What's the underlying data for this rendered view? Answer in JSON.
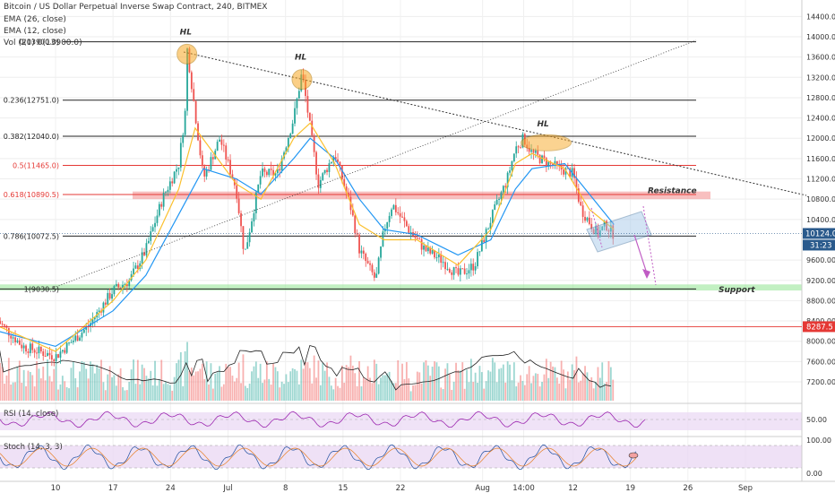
{
  "header": {
    "title": "Bitcoin / US Dollar Perpetual Inverse Swap Contract, 240, BITMEX",
    "ema26": "EMA (26, close)",
    "ema12": "EMA (12, close)",
    "vol": "Vol (20) 0(13900.0)"
  },
  "indicators": {
    "rsi_label": "RSI (14, close)",
    "stoch_label": "Stoch (14, 3, 3)"
  },
  "colors": {
    "up": "#26a69a",
    "down": "#ef5350",
    "ema26": "#2196f3",
    "ema12": "#fbc02d",
    "fib": "#222222",
    "fib_red": "#e53935",
    "resistance_zone": "#f28b8b",
    "support_zone": "#8fe38f",
    "price_tag": "#2a5a8c",
    "red_tag": "#e53935",
    "pane_fill": "#e9d7f3",
    "rsi_line": "#9c27b0"
  },
  "chart_data": {
    "type": "candlestick",
    "title": "Bitcoin / US Dollar Perpetual Inverse Swap Contract, 240, BITMEX",
    "price_axis": {
      "ticks": [
        14400,
        14000,
        13600,
        13200,
        12800,
        12400,
        12000,
        11600,
        11200,
        10800,
        10400,
        9600,
        9200,
        8800,
        8400,
        8000,
        7600,
        7200
      ],
      "last_price_tag": "10124.0",
      "countdown_tag": "31:23",
      "level_tag": "8287.5"
    },
    "x_axis": {
      "ticks": [
        "10",
        "17",
        "24",
        "Jul",
        "8",
        "15",
        "22",
        "Aug",
        "14:00",
        "12",
        "19",
        "26",
        "Sep"
      ]
    },
    "price_path": [
      {
        "t": "Jun 3",
        "p": 8400
      },
      {
        "t": "Jun 6",
        "p": 7900
      },
      {
        "t": "Jun 10",
        "p": 7700
      },
      {
        "t": "Jun 14",
        "p": 8300
      },
      {
        "t": "Jun 17",
        "p": 9000
      },
      {
        "t": "Jun 19",
        "p": 9200
      },
      {
        "t": "Jun 21",
        "p": 9800
      },
      {
        "t": "Jun 23",
        "p": 10800
      },
      {
        "t": "Jun 25",
        "p": 11500
      },
      {
        "t": "Jun 26",
        "p": 12800
      },
      {
        "t": "Jun 26",
        "p": 13800
      },
      {
        "t": "Jun 27",
        "p": 12500
      },
      {
        "t": "Jun 28",
        "p": 11200
      },
      {
        "t": "Jun 30",
        "p": 12000
      },
      {
        "t": "Jul 2",
        "p": 11000
      },
      {
        "t": "Jul 3",
        "p": 9700
      },
      {
        "t": "Jul 5",
        "p": 11300
      },
      {
        "t": "Jul 7",
        "p": 11300
      },
      {
        "t": "Jul 9",
        "p": 12400
      },
      {
        "t": "Jul 10",
        "p": 13300
      },
      {
        "t": "Jul 11",
        "p": 12200
      },
      {
        "t": "Jul 12",
        "p": 11100
      },
      {
        "t": "Jul 14",
        "p": 11700
      },
      {
        "t": "Jul 16",
        "p": 10600
      },
      {
        "t": "Jul 17",
        "p": 9800
      },
      {
        "t": "Jul 18",
        "p": 9500
      },
      {
        "t": "Jul 19",
        "p": 9200
      },
      {
        "t": "Jul 20",
        "p": 10200
      },
      {
        "t": "Jul 21",
        "p": 10700
      },
      {
        "t": "Jul 23",
        "p": 10200
      },
      {
        "t": "Jul 25",
        "p": 9800
      },
      {
        "t": "Jul 27",
        "p": 9600
      },
      {
        "t": "Jul 29",
        "p": 9300
      },
      {
        "t": "Jul 31",
        "p": 9500
      },
      {
        "t": "Aug 2",
        "p": 10400
      },
      {
        "t": "Aug 4",
        "p": 11200
      },
      {
        "t": "Aug 5",
        "p": 11800
      },
      {
        "t": "Aug 6",
        "p": 12000
      },
      {
        "t": "Aug 7",
        "p": 11700
      },
      {
        "t": "Aug 9",
        "p": 11500
      },
      {
        "t": "Aug 12",
        "p": 11300
      },
      {
        "t": "Aug 13",
        "p": 10600
      },
      {
        "t": "Aug 15",
        "p": 10100
      },
      {
        "t": "Aug 16",
        "p": 10300
      },
      {
        "t": "Aug 17",
        "p": 10100
      }
    ],
    "ema26": [
      {
        "t": "Jun 3",
        "p": 8200
      },
      {
        "t": "Jun 10",
        "p": 7900
      },
      {
        "t": "Jun 17",
        "p": 8600
      },
      {
        "t": "Jun 21",
        "p": 9300
      },
      {
        "t": "Jun 25",
        "p": 10500
      },
      {
        "t": "Jun 28",
        "p": 11400
      },
      {
        "t": "Jul 2",
        "p": 11200
      },
      {
        "t": "Jul 5",
        "p": 10900
      },
      {
        "t": "Jul 9",
        "p": 11600
      },
      {
        "t": "Jul 11",
        "p": 12000
      },
      {
        "t": "Jul 14",
        "p": 11600
      },
      {
        "t": "Jul 17",
        "p": 10800
      },
      {
        "t": "Jul 20",
        "p": 10200
      },
      {
        "t": "Jul 24",
        "p": 10100
      },
      {
        "t": "Jul 29",
        "p": 9700
      },
      {
        "t": "Aug 2",
        "p": 10000
      },
      {
        "t": "Aug 5",
        "p": 11000
      },
      {
        "t": "Aug 7",
        "p": 11400
      },
      {
        "t": "Aug 11",
        "p": 11500
      },
      {
        "t": "Aug 14",
        "p": 10900
      },
      {
        "t": "Aug 17",
        "p": 10300
      }
    ],
    "ema12": [
      {
        "t": "Jun 3",
        "p": 8300
      },
      {
        "t": "Jun 10",
        "p": 7800
      },
      {
        "t": "Jun 17",
        "p": 8800
      },
      {
        "t": "Jun 21",
        "p": 9600
      },
      {
        "t": "Jun 25",
        "p": 11000
      },
      {
        "t": "Jun 27",
        "p": 12200
      },
      {
        "t": "Jul 2",
        "p": 11100
      },
      {
        "t": "Jul 5",
        "p": 10800
      },
      {
        "t": "Jul 9",
        "p": 12000
      },
      {
        "t": "Jul 11",
        "p": 12300
      },
      {
        "t": "Jul 14",
        "p": 11500
      },
      {
        "t": "Jul 17",
        "p": 10300
      },
      {
        "t": "Jul 20",
        "p": 10000
      },
      {
        "t": "Jul 24",
        "p": 10000
      },
      {
        "t": "Jul 29",
        "p": 9500
      },
      {
        "t": "Aug 2",
        "p": 10200
      },
      {
        "t": "Aug 5",
        "p": 11500
      },
      {
        "t": "Aug 7",
        "p": 11700
      },
      {
        "t": "Aug 11",
        "p": 11400
      },
      {
        "t": "Aug 14",
        "p": 10600
      },
      {
        "t": "Aug 17",
        "p": 10200
      }
    ],
    "fib_levels": [
      {
        "label": "0(13900.0)",
        "price": 13900,
        "color": "fib"
      },
      {
        "label": "0.236(12751.0)",
        "price": 12751,
        "color": "fib"
      },
      {
        "label": "0.382(12040.0)",
        "price": 12040,
        "color": "fib"
      },
      {
        "label": "0.5(11465.0)",
        "price": 11465,
        "color": "fib_red"
      },
      {
        "label": "0.618(10890.5)",
        "price": 10890.5,
        "color": "fib_red"
      },
      {
        "label": "0.786(10072.5)",
        "price": 10072.5,
        "color": "fib"
      },
      {
        "label": "1(9030.5)",
        "price": 9030.5,
        "color": "fib"
      }
    ],
    "zones": [
      {
        "label": "Resistance",
        "from": 10800,
        "to": 10950,
        "color": "resistance_zone"
      },
      {
        "label": "Support",
        "from": 9000,
        "to": 9120,
        "color": "support_zone"
      }
    ],
    "annotations": [
      {
        "text": "HL",
        "t": "Jun 26",
        "p": 13800
      },
      {
        "text": "HL",
        "t": "Jul 10",
        "p": 13300
      },
      {
        "text": "HL",
        "t": "Aug 6",
        "p": 12000
      }
    ],
    "rsi_axis_tick": "50.00",
    "stoch_axis_ticks": [
      "100.00",
      "0.00"
    ]
  }
}
